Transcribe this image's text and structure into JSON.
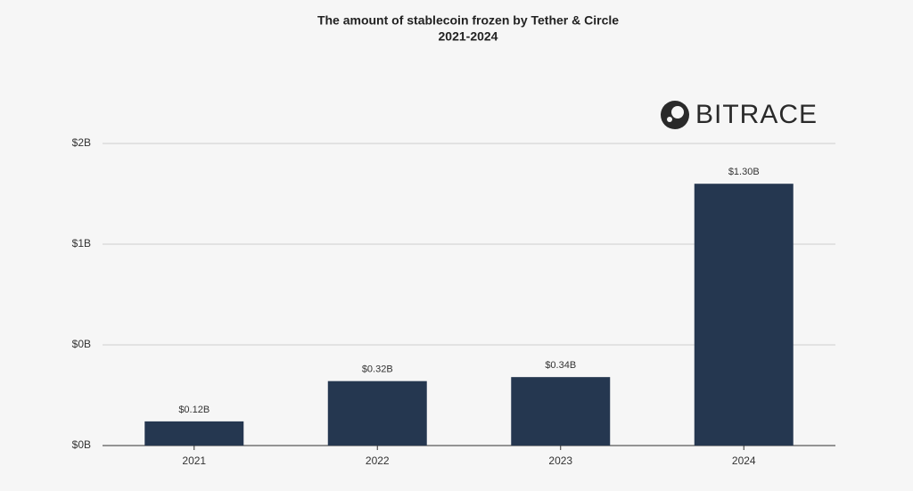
{
  "chart_data": {
    "type": "bar",
    "title": "The amount of stablecoin frozen by Tether & Circle",
    "subtitle": "2021-2024",
    "logo": "BITRACE",
    "categories": [
      "2021",
      "2022",
      "2023",
      "2024"
    ],
    "values": [
      0.12,
      0.32,
      0.34,
      1.3
    ],
    "value_labels": [
      "$0.12B",
      "$0.32B",
      "$0.34B",
      "$1.30B"
    ],
    "color": "#253750",
    "ylim": [
      0,
      1.5
    ],
    "yticks": [
      {
        "value": 0,
        "label": "$0B"
      },
      {
        "value": 0.5,
        "label": "$0B"
      },
      {
        "value": 1.0,
        "label": "$1B"
      },
      {
        "value": 1.5,
        "label": "$2B"
      }
    ],
    "grid": true
  }
}
